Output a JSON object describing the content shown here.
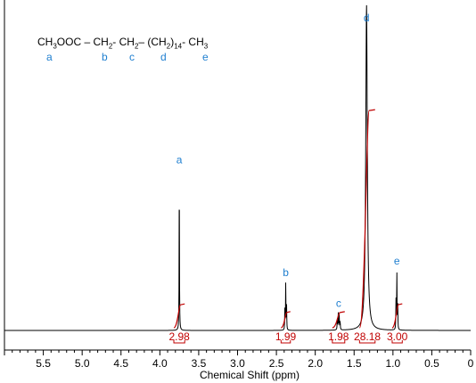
{
  "formula": {
    "parts": [
      "CH",
      "3",
      "OOC – CH",
      "2",
      "- CH",
      "2",
      "– (CH",
      "2",
      ")",
      "14",
      "- CH",
      "3"
    ],
    "group_labels": [
      "a",
      "b",
      "c",
      "d",
      "e"
    ]
  },
  "colors": {
    "spectrum": "#000000",
    "integral": "#c00000",
    "peak_label": "#1f7fd0"
  },
  "chart_data": {
    "type": "line",
    "title": "",
    "xlabel": "Chemical Shift (ppm)",
    "ylabel": "",
    "xlim": [
      6.0,
      0.0
    ],
    "x_reversed": true,
    "xticks": [
      5.5,
      5.0,
      4.5,
      4.0,
      3.5,
      3.0,
      2.5,
      2.0,
      1.5,
      1.0,
      0.5,
      0.0
    ],
    "xtick_labels": [
      "5.5",
      "5.0",
      "4.5",
      "4.0",
      "3.5",
      "3.0",
      "2.5",
      "2.0",
      "1.5",
      "1.0",
      "0.5",
      "0"
    ],
    "minor_tick_step": 0.1,
    "peaks": [
      {
        "label": "a",
        "shift": 3.75,
        "intensity": 0.49,
        "multiplicity": "singlet"
      },
      {
        "label": "b",
        "shift": 2.38,
        "intensity": 0.145,
        "multiplicity": "triplet"
      },
      {
        "label": "c",
        "shift": 1.7,
        "intensity": 0.05,
        "multiplicity": "multiplet"
      },
      {
        "label": "d",
        "shift": 1.34,
        "intensity": 1.0,
        "multiplicity": "broad singlet"
      },
      {
        "label": "e",
        "shift": 0.95,
        "intensity": 0.18,
        "multiplicity": "triplet"
      }
    ],
    "integrals": [
      {
        "shift_start": 3.82,
        "shift_end": 3.68,
        "value": "2.98"
      },
      {
        "shift_start": 2.44,
        "shift_end": 2.32,
        "value": "1.99"
      },
      {
        "shift_start": 1.78,
        "shift_end": 1.62,
        "value": "1.98"
      },
      {
        "shift_start": 1.43,
        "shift_end": 1.23,
        "value": "28.18"
      },
      {
        "shift_start": 1.01,
        "shift_end": 0.88,
        "value": "3.00"
      }
    ]
  }
}
